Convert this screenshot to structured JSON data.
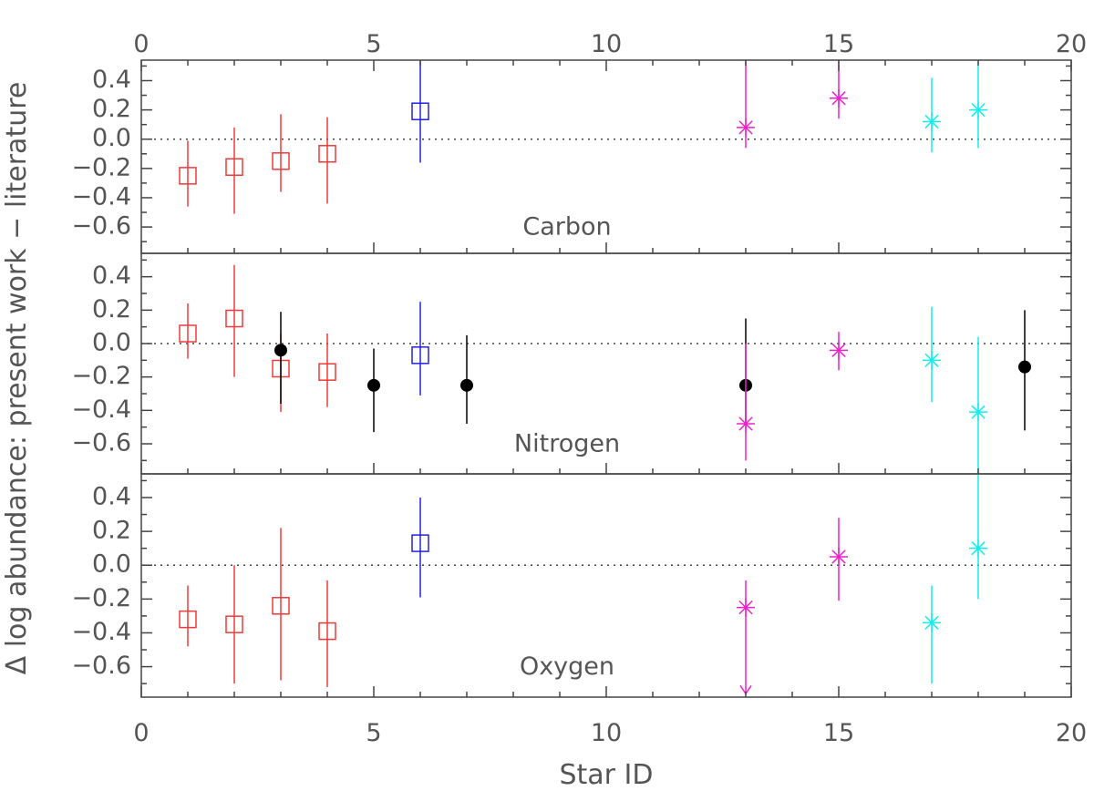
{
  "chart_data": {
    "type": "scatter",
    "xlabel": "Star ID",
    "ylabel": "Δ log abundance: present work − literature",
    "xlim": [
      0,
      20
    ],
    "ylim": [
      -0.78,
      0.54
    ],
    "x_ticks": [
      0,
      5,
      10,
      15,
      20
    ],
    "x_tick_labels": [
      "0",
      "5",
      "10",
      "15",
      "20"
    ],
    "y_ticks": [
      -0.6,
      -0.4,
      -0.2,
      0.0,
      0.2,
      0.4
    ],
    "y_tick_labels": [
      "−0.6",
      "−0.4",
      "−0.2",
      "0.0",
      "0.2",
      "0.4"
    ],
    "colors": {
      "red": "#ee3b3b",
      "blue": "#2222dd",
      "magenta": "#ee22cc",
      "cyan": "#11eeee",
      "black": "#000000",
      "axis": "#444444"
    },
    "panels": [
      {
        "label": "Carbon",
        "points": [
          {
            "x": 1,
            "y": -0.25,
            "lo": -0.46,
            "hi": -0.01,
            "marker": "square",
            "color": "red"
          },
          {
            "x": 2,
            "y": -0.19,
            "lo": -0.51,
            "hi": 0.08,
            "marker": "square",
            "color": "red"
          },
          {
            "x": 3,
            "y": -0.15,
            "lo": -0.36,
            "hi": 0.17,
            "marker": "square",
            "color": "red"
          },
          {
            "x": 4,
            "y": -0.1,
            "lo": -0.44,
            "hi": 0.15,
            "marker": "square",
            "color": "red"
          },
          {
            "x": 6,
            "y": 0.19,
            "lo": -0.16,
            "hi": 0.54,
            "marker": "square",
            "color": "blue"
          },
          {
            "x": 13,
            "y": 0.08,
            "lo": -0.06,
            "hi": 0.54,
            "marker": "asterisk",
            "color": "magenta"
          },
          {
            "x": 15,
            "y": 0.28,
            "lo": 0.14,
            "hi": 0.54,
            "marker": "asterisk",
            "color": "magenta"
          },
          {
            "x": 17,
            "y": 0.12,
            "lo": -0.09,
            "hi": 0.42,
            "marker": "asterisk",
            "color": "cyan"
          },
          {
            "x": 18,
            "y": 0.2,
            "lo": -0.06,
            "hi": 0.54,
            "marker": "asterisk",
            "color": "cyan"
          }
        ]
      },
      {
        "label": "Nitrogen",
        "points": [
          {
            "x": 1,
            "y": 0.06,
            "lo": -0.09,
            "hi": 0.24,
            "marker": "square",
            "color": "red"
          },
          {
            "x": 2,
            "y": 0.15,
            "lo": -0.2,
            "hi": 0.47,
            "marker": "square",
            "color": "red"
          },
          {
            "x": 3,
            "y": -0.15,
            "lo": -0.41,
            "hi": 0.06,
            "marker": "square",
            "color": "red"
          },
          {
            "x": 4,
            "y": -0.17,
            "lo": -0.38,
            "hi": 0.06,
            "marker": "square",
            "color": "red"
          },
          {
            "x": 3,
            "y": -0.04,
            "lo": -0.36,
            "hi": 0.19,
            "marker": "dot",
            "color": "black"
          },
          {
            "x": 5,
            "y": -0.25,
            "lo": -0.53,
            "hi": -0.03,
            "marker": "dot",
            "color": "black"
          },
          {
            "x": 6,
            "y": -0.07,
            "lo": -0.31,
            "hi": 0.25,
            "marker": "square",
            "color": "blue"
          },
          {
            "x": 7,
            "y": -0.25,
            "lo": -0.48,
            "hi": 0.05,
            "marker": "dot",
            "color": "black"
          },
          {
            "x": 13,
            "y": -0.25,
            "lo": -0.48,
            "hi": 0.15,
            "marker": "dot",
            "color": "black"
          },
          {
            "x": 13,
            "y": -0.48,
            "lo": -0.7,
            "hi": 0.0,
            "marker": "asterisk",
            "color": "magenta"
          },
          {
            "x": 15,
            "y": -0.04,
            "lo": -0.16,
            "hi": 0.07,
            "marker": "asterisk",
            "color": "magenta"
          },
          {
            "x": 17,
            "y": -0.1,
            "lo": -0.35,
            "hi": 0.22,
            "marker": "asterisk",
            "color": "cyan"
          },
          {
            "x": 18,
            "y": -0.41,
            "lo": -0.78,
            "hi": 0.04,
            "marker": "asterisk",
            "color": "cyan"
          },
          {
            "x": 19,
            "y": -0.14,
            "lo": -0.52,
            "hi": 0.2,
            "marker": "dot",
            "color": "black"
          }
        ]
      },
      {
        "label": "Oxygen",
        "points": [
          {
            "x": 1,
            "y": -0.32,
            "lo": -0.48,
            "hi": -0.12,
            "marker": "square",
            "color": "red"
          },
          {
            "x": 2,
            "y": -0.35,
            "lo": -0.7,
            "hi": 0.0,
            "marker": "square",
            "color": "red"
          },
          {
            "x": 3,
            "y": -0.24,
            "lo": -0.68,
            "hi": 0.22,
            "marker": "square",
            "color": "red"
          },
          {
            "x": 4,
            "y": -0.39,
            "lo": -0.72,
            "hi": -0.09,
            "marker": "square",
            "color": "red"
          },
          {
            "x": 6,
            "y": 0.13,
            "lo": -0.19,
            "hi": 0.4,
            "marker": "square",
            "color": "blue"
          },
          {
            "x": 13,
            "y": -0.25,
            "lo": -0.76,
            "hi": -0.09,
            "marker": "asterisk",
            "color": "magenta",
            "upper_limit": true
          },
          {
            "x": 15,
            "y": 0.05,
            "lo": -0.21,
            "hi": 0.28,
            "marker": "asterisk",
            "color": "magenta"
          },
          {
            "x": 17,
            "y": -0.34,
            "lo": -0.7,
            "hi": -0.12,
            "marker": "asterisk",
            "color": "cyan"
          },
          {
            "x": 18,
            "y": 0.1,
            "lo": -0.2,
            "hi": 0.54,
            "marker": "asterisk",
            "color": "cyan"
          }
        ]
      }
    ]
  }
}
